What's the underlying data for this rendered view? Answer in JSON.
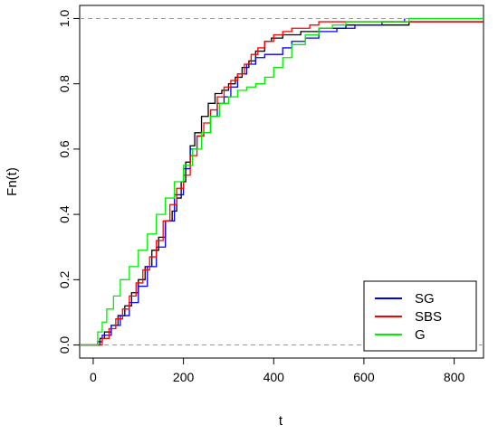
{
  "chart_data": {
    "type": "line",
    "xlabel": "t",
    "ylabel": "Fn(t)",
    "xlim": [
      -30,
      865
    ],
    "ylim": [
      -0.04,
      1.04
    ],
    "x_ticks": [
      0,
      200,
      400,
      600,
      800
    ],
    "x_tick_labels": [
      "0",
      "200",
      "400",
      "600",
      "800"
    ],
    "y_ticks": [
      0.0,
      0.2,
      0.4,
      0.6,
      0.8,
      1.0
    ],
    "y_tick_labels": [
      "0.0",
      "0.2",
      "0.4",
      "0.6",
      "0.8",
      "1.0"
    ],
    "reference_lines": [
      0,
      1
    ],
    "legend_position": "bottom-right",
    "series": [
      {
        "name": "",
        "color": "#000000",
        "in_legend": false,
        "x": [
          -30,
          10,
          15,
          25,
          40,
          55,
          70,
          85,
          100,
          115,
          130,
          145,
          160,
          175,
          185,
          195,
          205,
          215,
          225,
          240,
          255,
          270,
          285,
          300,
          315,
          330,
          345,
          360,
          380,
          395,
          420,
          460,
          500,
          560,
          640,
          700,
          760,
          865
        ],
        "y": [
          0.0,
          0.0,
          0.02,
          0.04,
          0.06,
          0.09,
          0.12,
          0.16,
          0.2,
          0.24,
          0.29,
          0.33,
          0.38,
          0.41,
          0.45,
          0.5,
          0.56,
          0.61,
          0.65,
          0.7,
          0.74,
          0.77,
          0.78,
          0.8,
          0.82,
          0.85,
          0.87,
          0.9,
          0.93,
          0.94,
          0.95,
          0.96,
          0.97,
          0.98,
          0.98,
          0.99,
          0.99,
          0.99
        ]
      },
      {
        "name": "SG",
        "color": "#0000ff",
        "in_legend": true,
        "x": [
          -30,
          0,
          10,
          20,
          40,
          60,
          80,
          100,
          120,
          140,
          160,
          180,
          200,
          215,
          230,
          245,
          260,
          275,
          290,
          305,
          320,
          340,
          360,
          380,
          400,
          420,
          440,
          470,
          500,
          540,
          580,
          640,
          690,
          690
        ],
        "y": [
          0.0,
          0.0,
          0.01,
          0.03,
          0.06,
          0.09,
          0.13,
          0.18,
          0.24,
          0.3,
          0.38,
          0.46,
          0.54,
          0.6,
          0.64,
          0.65,
          0.7,
          0.74,
          0.76,
          0.79,
          0.83,
          0.86,
          0.88,
          0.89,
          0.89,
          0.91,
          0.93,
          0.94,
          0.96,
          0.97,
          0.98,
          0.99,
          0.99,
          1.0
        ]
      },
      {
        "name": "SBS",
        "color": "#ff0000",
        "in_legend": true,
        "x": [
          -30,
          10,
          20,
          35,
          50,
          65,
          80,
          95,
          110,
          125,
          140,
          155,
          170,
          185,
          200,
          215,
          230,
          245,
          260,
          275,
          290,
          305,
          320,
          335,
          350,
          365,
          380,
          400,
          420,
          440,
          460,
          480,
          500,
          520,
          560,
          620,
          700,
          780,
          865
        ],
        "y": [
          0.0,
          0.0,
          0.02,
          0.05,
          0.08,
          0.11,
          0.15,
          0.19,
          0.23,
          0.27,
          0.32,
          0.38,
          0.43,
          0.48,
          0.52,
          0.58,
          0.64,
          0.68,
          0.72,
          0.76,
          0.79,
          0.81,
          0.83,
          0.86,
          0.89,
          0.91,
          0.93,
          0.95,
          0.96,
          0.97,
          0.97,
          0.98,
          0.99,
          0.99,
          0.99,
          0.99,
          0.99,
          0.99,
          0.99
        ]
      },
      {
        "name": "G",
        "color": "#00ee00",
        "in_legend": true,
        "x": [
          -30,
          0,
          10,
          20,
          30,
          45,
          60,
          80,
          100,
          120,
          140,
          160,
          180,
          200,
          220,
          240,
          260,
          280,
          300,
          320,
          340,
          360,
          380,
          400,
          420,
          440,
          470,
          500,
          530,
          560,
          600,
          650,
          700,
          750,
          800,
          865
        ],
        "y": [
          0.0,
          0.0,
          0.04,
          0.07,
          0.11,
          0.15,
          0.2,
          0.24,
          0.29,
          0.34,
          0.4,
          0.45,
          0.5,
          0.55,
          0.6,
          0.65,
          0.7,
          0.74,
          0.76,
          0.78,
          0.79,
          0.8,
          0.82,
          0.85,
          0.88,
          0.92,
          0.95,
          0.97,
          0.98,
          0.99,
          0.99,
          0.99,
          1.0,
          1.0,
          1.0,
          1.0
        ]
      }
    ]
  }
}
